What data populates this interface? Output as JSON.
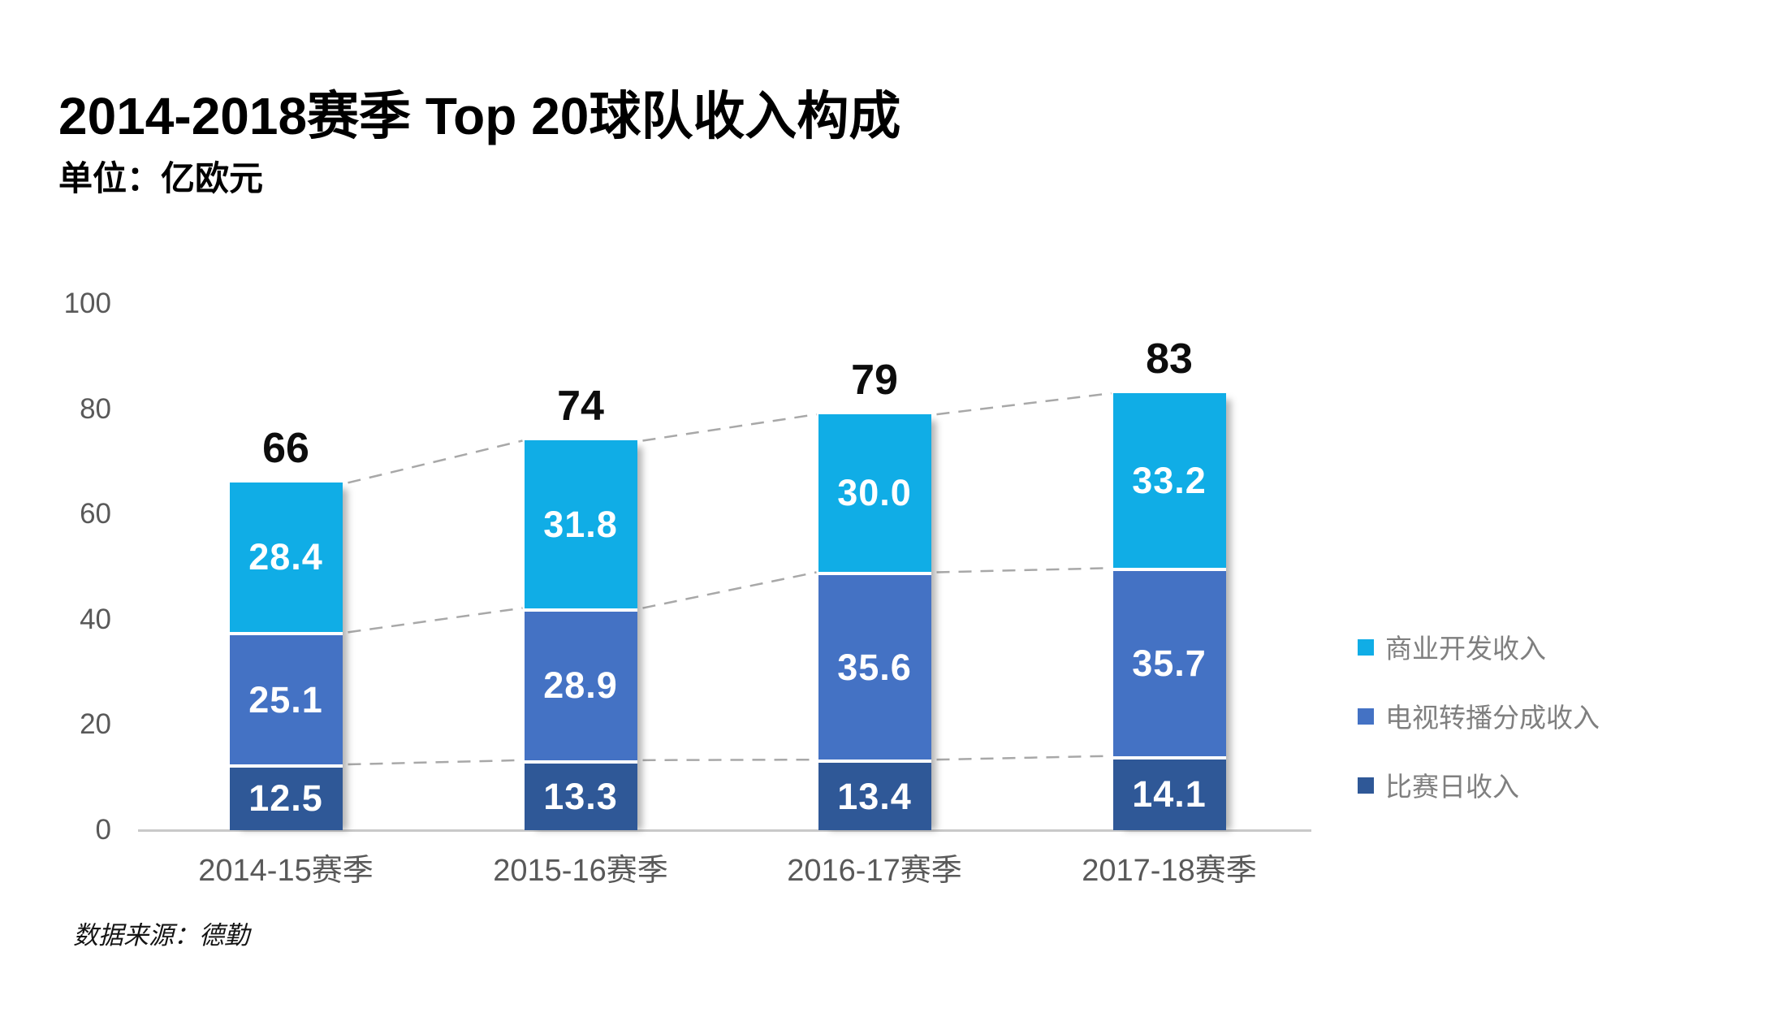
{
  "header": {
    "title": "2014-2018赛季 Top 20球队收入构成",
    "subtitle": "单位：亿欧元"
  },
  "footer": {
    "source": "数据来源：德勤"
  },
  "chart_data": {
    "type": "bar",
    "stacked": true,
    "title": "2014-2018赛季 Top 20球队收入构成",
    "unit_label": "单位：亿欧元",
    "categories": [
      "2014-15赛季",
      "2015-16赛季",
      "2016-17赛季",
      "2017-18赛季"
    ],
    "series": [
      {
        "name": "比赛日收入",
        "color": "#2f5897",
        "values": [
          12.5,
          13.3,
          13.4,
          14.1
        ]
      },
      {
        "name": "电视转播分成收入",
        "color": "#4472c4",
        "values": [
          25.1,
          28.9,
          35.6,
          35.7
        ]
      },
      {
        "name": "商业开发收入",
        "color": "#10ade6",
        "values": [
          28.4,
          31.8,
          30.0,
          33.2
        ]
      }
    ],
    "totals": [
      66,
      74,
      79,
      83
    ],
    "value_decimals": 1,
    "y_axis": {
      "min": 0,
      "max": 100,
      "step": 20,
      "ticks": [
        0,
        20,
        40,
        60,
        80,
        100
      ]
    },
    "legend_order_top_to_bottom": [
      "商业开发收入",
      "电视转播分成收入",
      "比赛日收入"
    ],
    "legend_position": "right",
    "grid": false,
    "connectors": "dashed",
    "connector_color": "#a8a8a8",
    "axis_label_color": "#595959",
    "baseline_color": "#c9c9c9",
    "total_label_color": "#0d0d0d",
    "value_label_color": "#ffffff"
  }
}
